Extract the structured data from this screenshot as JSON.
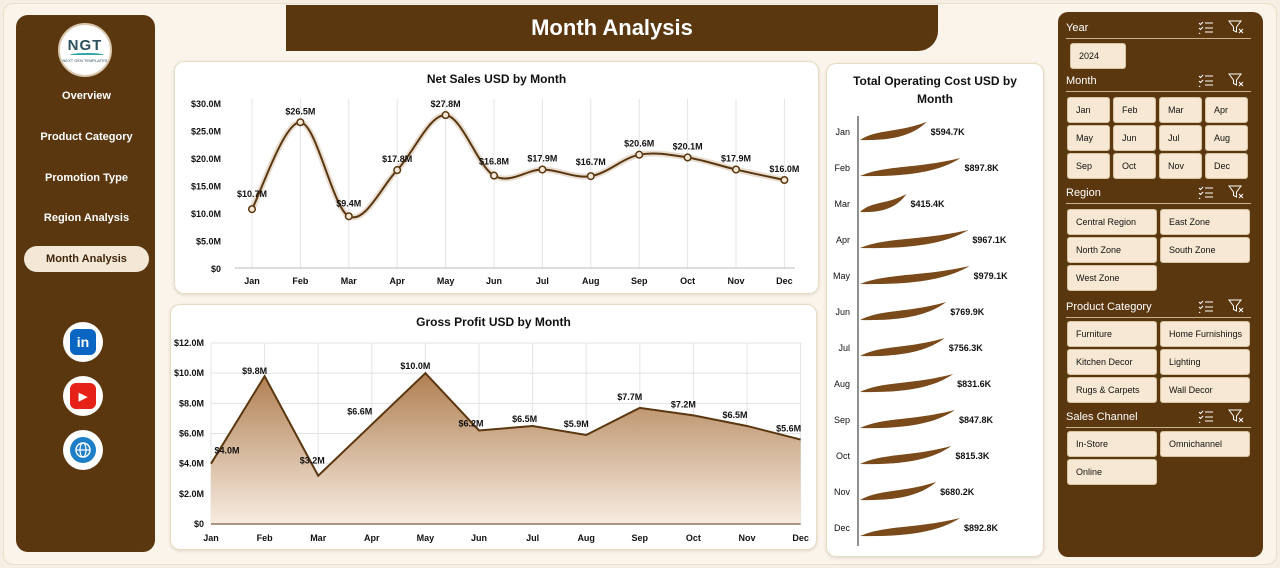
{
  "sidebar": {
    "logo_text": "NGT",
    "logo_sub": "NEXT GEN TEMPLATES",
    "items": [
      "Overview",
      "Product Category",
      "Promotion Type",
      "Region Analysis",
      "Month Analysis"
    ],
    "active": "Month Analysis",
    "social": [
      {
        "icon": "linkedin-icon",
        "glyph": "in",
        "color": "#0a66c2"
      },
      {
        "icon": "youtube-icon",
        "glyph": "▶",
        "color": "#e62117"
      },
      {
        "icon": "globe-icon",
        "glyph": "🌐",
        "color": "#1c7fc8"
      }
    ]
  },
  "header": {
    "title": "Month Analysis"
  },
  "charts": {
    "net_sales": {
      "title": "Net Sales USD by Month",
      "y_ticks": [
        "$0",
        "$5.0M",
        "$10.0M",
        "$15.0M",
        "$20.0M",
        "$25.0M",
        "$30.0M"
      ],
      "labels": [
        "$10.7M",
        "$26.5M",
        "$9.4M",
        "$17.8M",
        "$27.8M",
        "$16.8M",
        "$17.9M",
        "$16.7M",
        "$20.6M",
        "$20.1M",
        "$17.9M",
        "$16.0M"
      ]
    },
    "gross_profit": {
      "title": "Gross Profit USD by Month",
      "y_ticks": [
        "$0",
        "$2.0M",
        "$4.0M",
        "$6.0M",
        "$8.0M",
        "$10.0M",
        "$12.0M"
      ],
      "labels": [
        "$4.0M",
        "$9.8M",
        "$3.2M",
        "$6.6M",
        "$10.0M",
        "$6.2M",
        "$6.5M",
        "$5.9M",
        "$7.7M",
        "$7.2M",
        "$6.5M",
        "$5.6M"
      ]
    },
    "operating_cost": {
      "title_line1": "Total Operating Cost USD by",
      "title_line2": "Month",
      "labels": [
        "$594.7K",
        "$897.8K",
        "$415.4K",
        "$967.1K",
        "$979.1K",
        "$769.9K",
        "$756.3K",
        "$831.6K",
        "$847.8K",
        "$815.3K",
        "$680.2K",
        "$892.8K"
      ]
    }
  },
  "chart_data": [
    {
      "type": "line",
      "title": "Net Sales USD by Month",
      "categories": [
        "Jan",
        "Feb",
        "Mar",
        "Apr",
        "May",
        "Jun",
        "Jul",
        "Aug",
        "Sep",
        "Oct",
        "Nov",
        "Dec"
      ],
      "values": [
        10.7,
        26.5,
        9.4,
        17.8,
        27.8,
        16.8,
        17.9,
        16.7,
        20.6,
        20.1,
        17.9,
        16.0
      ],
      "unit": "$M",
      "ylim": [
        0,
        30
      ],
      "grid": "vertical",
      "line_color": "#5b3710"
    },
    {
      "type": "area",
      "title": "Gross Profit USD by Month",
      "categories": [
        "Jan",
        "Feb",
        "Mar",
        "Apr",
        "May",
        "Jun",
        "Jul",
        "Aug",
        "Sep",
        "Oct",
        "Nov",
        "Dec"
      ],
      "values": [
        4.0,
        9.8,
        3.2,
        6.6,
        10.0,
        6.2,
        6.5,
        5.9,
        7.7,
        7.2,
        6.5,
        5.6
      ],
      "unit": "$M",
      "ylim": [
        0,
        12
      ],
      "grid": "both",
      "fill_color": "#c9a17a",
      "line_color": "#5b3710"
    },
    {
      "type": "bar",
      "orientation": "horizontal",
      "title": "Total Operating Cost USD by Month",
      "categories": [
        "Jan",
        "Feb",
        "Mar",
        "Apr",
        "May",
        "Jun",
        "Jul",
        "Aug",
        "Sep",
        "Oct",
        "Nov",
        "Dec"
      ],
      "values": [
        594.7,
        897.8,
        415.4,
        967.1,
        979.1,
        769.9,
        756.3,
        831.6,
        847.8,
        815.3,
        680.2,
        892.8
      ],
      "unit": "$K",
      "bar_color": "#7a4a1a"
    }
  ],
  "filters": {
    "year": {
      "label": "Year",
      "options": [
        "2024"
      ]
    },
    "month": {
      "label": "Month",
      "options": [
        "Jan",
        "Feb",
        "Mar",
        "Apr",
        "May",
        "Jun",
        "Jul",
        "Aug",
        "Sep",
        "Oct",
        "Nov",
        "Dec"
      ]
    },
    "region": {
      "label": "Region",
      "options": [
        "Central Region",
        "East Zone",
        "North Zone",
        "South Zone",
        "West Zone"
      ]
    },
    "product_category": {
      "label": "Product Category",
      "options": [
        "Furniture",
        "Home Furnishings",
        "Kitchen Decor",
        "Lighting",
        "Rugs & Carpets",
        "Wall Decor"
      ]
    },
    "sales_channel": {
      "label": "Sales Channel",
      "options": [
        "In-Store",
        "Omnichannel",
        "Online"
      ]
    }
  }
}
